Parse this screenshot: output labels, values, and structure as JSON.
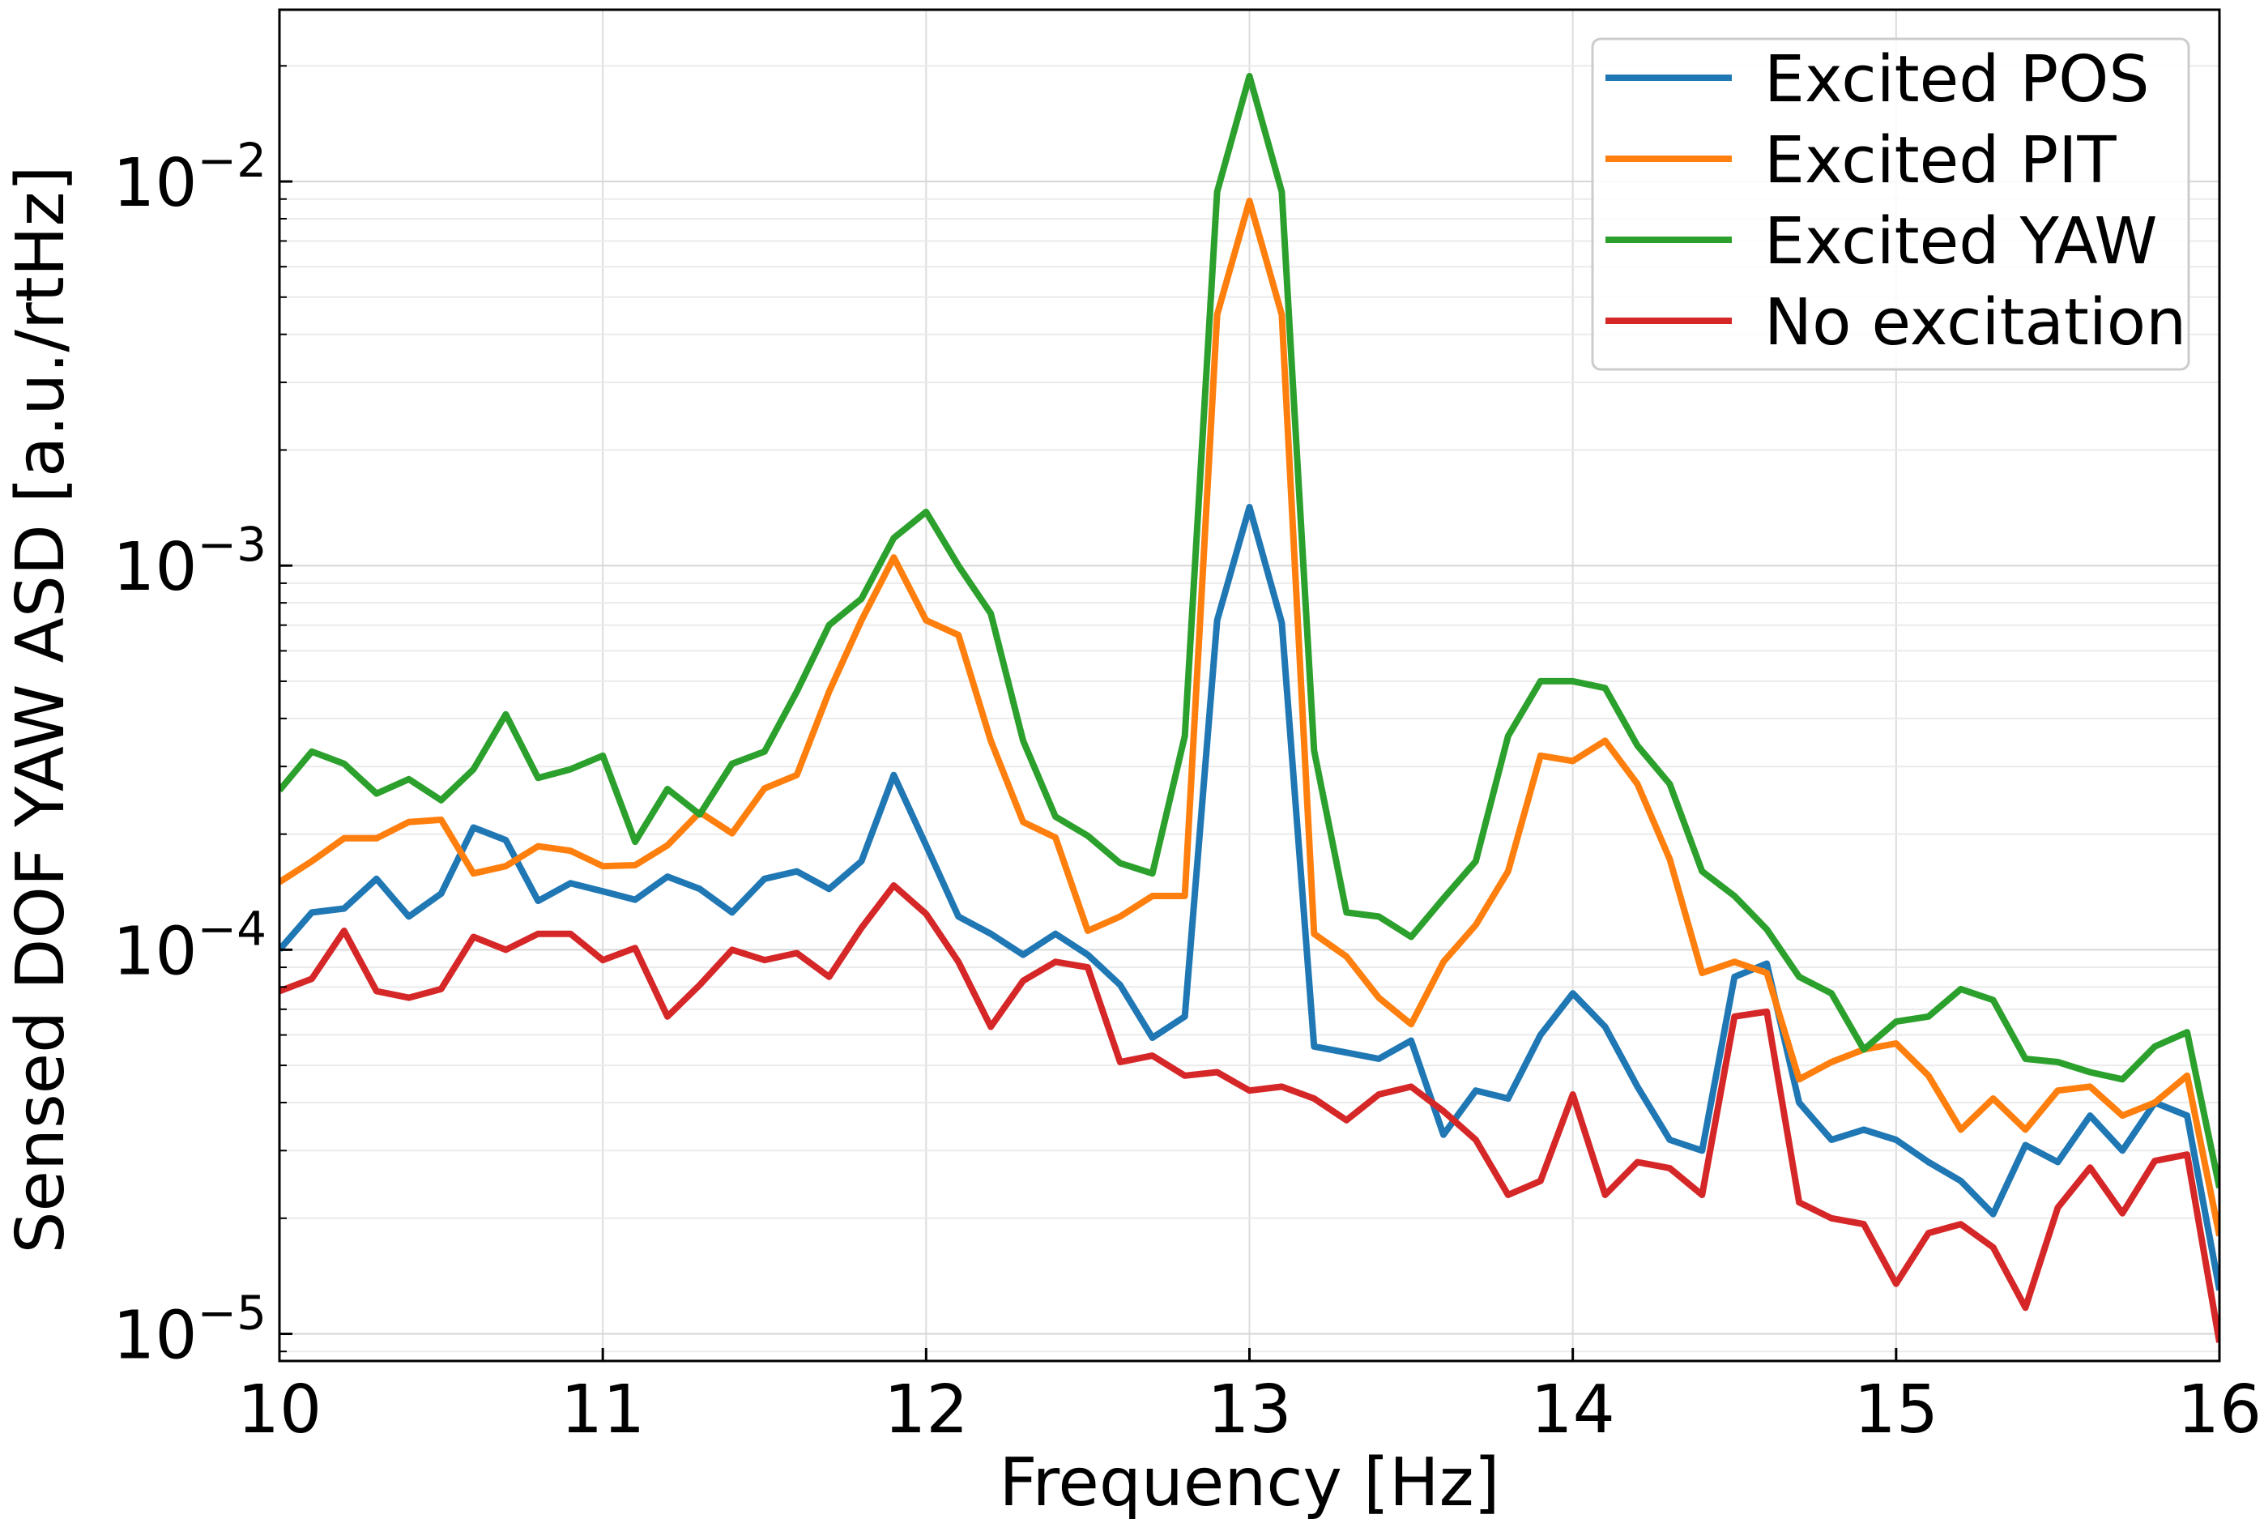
{
  "chart_data": {
    "type": "line",
    "title": "",
    "xlabel": "Frequency [Hz]",
    "ylabel": "Sensed DOF YAW ASD [a.u./rtHz]",
    "xlim": [
      10,
      16
    ],
    "ylim": [
      8.5e-06,
      0.028
    ],
    "yscale": "log",
    "grid": true,
    "legend_position": "top-right",
    "x_ticks": [
      {
        "value": 10,
        "label": "10"
      },
      {
        "value": 11,
        "label": "11"
      },
      {
        "value": 12,
        "label": "12"
      },
      {
        "value": 13,
        "label": "13"
      },
      {
        "value": 14,
        "label": "14"
      },
      {
        "value": 15,
        "label": "15"
      },
      {
        "value": 16,
        "label": "16"
      }
    ],
    "y_ticks": [
      {
        "value": 0.01,
        "base": "10",
        "exp": "−2"
      },
      {
        "value": 0.001,
        "base": "10",
        "exp": "−3"
      },
      {
        "value": 0.0001,
        "base": "10",
        "exp": "−4"
      },
      {
        "value": 1e-05,
        "base": "10",
        "exp": "−5"
      }
    ],
    "x": [
      10.0,
      10.1,
      10.2,
      10.3,
      10.4,
      10.5,
      10.6,
      10.7,
      10.8,
      10.9,
      11.0,
      11.1,
      11.2,
      11.3,
      11.4,
      11.5,
      11.6,
      11.7,
      11.8,
      11.9,
      12.0,
      12.1,
      12.2,
      12.3,
      12.4,
      12.5,
      12.6,
      12.7,
      12.8,
      12.9,
      13.0,
      13.1,
      13.2,
      13.3,
      13.4,
      13.5,
      13.6,
      13.7,
      13.8,
      13.9,
      14.0,
      14.1,
      14.2,
      14.3,
      14.4,
      14.5,
      14.6,
      14.7,
      14.8,
      14.9,
      15.0,
      15.1,
      15.2,
      15.3,
      15.4,
      15.5,
      15.6,
      15.7,
      15.8,
      15.9,
      16.0
    ],
    "series": [
      {
        "name": "Excited POS",
        "color": "#1f77b4",
        "values": [
          0.0001,
          0.000125,
          0.000128,
          0.000153,
          0.000122,
          0.00014,
          0.000208,
          0.000193,
          0.000134,
          0.000149,
          0.000142,
          0.000135,
          0.000155,
          0.000144,
          0.000125,
          0.000153,
          0.00016,
          0.000144,
          0.00017,
          0.000285,
          0.000187,
          0.000122,
          0.00011,
          9.7e-05,
          0.00011,
          9.7e-05,
          8.1e-05,
          5.9e-05,
          6.7e-05,
          0.00072,
          0.00142,
          0.00071,
          5.6e-05,
          5.4e-05,
          5.2e-05,
          5.8e-05,
          3.3e-05,
          4.3e-05,
          4.1e-05,
          6e-05,
          7.7e-05,
          6.3e-05,
          4.4e-05,
          3.2e-05,
          3e-05,
          8.5e-05,
          9.2e-05,
          4e-05,
          3.2e-05,
          3.4e-05,
          3.2e-05,
          2.8e-05,
          2.5e-05,
          2.05e-05,
          3.1e-05,
          2.8e-05,
          3.7e-05,
          3e-05,
          4e-05,
          3.7e-05,
          1.3e-05
        ]
      },
      {
        "name": "Excited PIT",
        "color": "#ff7f0e",
        "values": [
          0.00015,
          0.00017,
          0.000195,
          0.000195,
          0.000215,
          0.000218,
          0.000158,
          0.000165,
          0.000186,
          0.000181,
          0.000165,
          0.000166,
          0.000187,
          0.000228,
          0.000201,
          0.000263,
          0.000285,
          0.00047,
          0.00072,
          0.00105,
          0.00072,
          0.00066,
          0.00035,
          0.000215,
          0.000196,
          0.000112,
          0.000122,
          0.000138,
          0.000138,
          0.0045,
          0.0089,
          0.0045,
          0.00011,
          9.6e-05,
          7.5e-05,
          6.4e-05,
          9.3e-05,
          0.000116,
          0.00016,
          0.00032,
          0.00031,
          0.00035,
          0.00027,
          0.000172,
          8.7e-05,
          9.3e-05,
          8.7e-05,
          4.6e-05,
          5.1e-05,
          5.5e-05,
          5.7e-05,
          4.7e-05,
          3.4e-05,
          4.1e-05,
          3.4e-05,
          4.3e-05,
          4.4e-05,
          3.7e-05,
          4e-05,
          4.7e-05,
          1.8e-05
        ]
      },
      {
        "name": "Excited YAW",
        "color": "#2ca02c",
        "values": [
          0.00026,
          0.000328,
          0.000305,
          0.000255,
          0.000278,
          0.000245,
          0.000295,
          0.00041,
          0.00028,
          0.000295,
          0.00032,
          0.000191,
          0.000262,
          0.000225,
          0.000305,
          0.000328,
          0.00047,
          0.0007,
          0.00082,
          0.00118,
          0.00138,
          0.001,
          0.00075,
          0.00035,
          0.000222,
          0.000198,
          0.000168,
          0.000158,
          0.00036,
          0.0094,
          0.0188,
          0.0094,
          0.00033,
          0.000125,
          0.000122,
          0.000108,
          0.000136,
          0.00017,
          0.00036,
          0.0005,
          0.0005,
          0.00048,
          0.00034,
          0.00027,
          0.00016,
          0.000138,
          0.000113,
          8.5e-05,
          7.7e-05,
          5.5e-05,
          6.5e-05,
          6.7e-05,
          7.9e-05,
          7.4e-05,
          5.2e-05,
          5.1e-05,
          4.8e-05,
          4.6e-05,
          5.6e-05,
          6.1e-05,
          2.4e-05
        ]
      },
      {
        "name": "No excitation",
        "color": "#d62728",
        "values": [
          7.8e-05,
          8.4e-05,
          0.000112,
          7.8e-05,
          7.5e-05,
          7.9e-05,
          0.000108,
          0.0001,
          0.00011,
          0.00011,
          9.4e-05,
          0.000101,
          6.7e-05,
          8.1e-05,
          0.0001,
          9.4e-05,
          9.8e-05,
          8.5e-05,
          0.000114,
          0.000147,
          0.000124,
          9.3e-05,
          6.3e-05,
          8.3e-05,
          9.3e-05,
          9e-05,
          5.1e-05,
          5.3e-05,
          4.7e-05,
          4.8e-05,
          4.3e-05,
          4.4e-05,
          4.1e-05,
          3.6e-05,
          4.2e-05,
          4.4e-05,
          3.8e-05,
          3.2e-05,
          2.3e-05,
          2.5e-05,
          4.2e-05,
          2.3e-05,
          2.8e-05,
          2.7e-05,
          2.3e-05,
          6.7e-05,
          6.9e-05,
          2.2e-05,
          2e-05,
          1.93e-05,
          1.35e-05,
          1.83e-05,
          1.93e-05,
          1.68e-05,
          1.17e-05,
          2.13e-05,
          2.71e-05,
          2.06e-05,
          2.82e-05,
          2.93e-05,
          9.5e-06
        ]
      }
    ]
  }
}
